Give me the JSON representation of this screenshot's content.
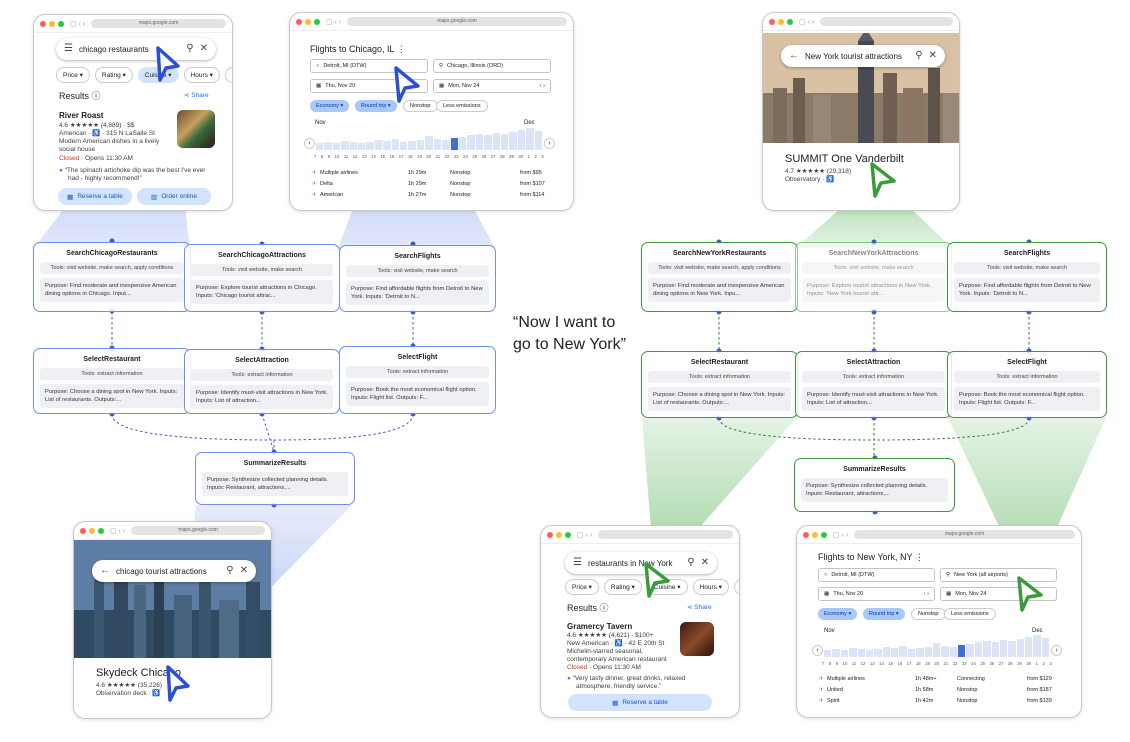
{
  "colors": {
    "blue_accent": "#5b7fe8",
    "green_accent": "#3a9b3a",
    "chip_selected": "#d3e3fd",
    "closed_red": "#d93025"
  },
  "quote": {
    "line1": "“Now I want to",
    "line2": "go to New York”"
  },
  "maps_chicago": {
    "url": "maps.google.com",
    "search": "chicago restaurants",
    "chips": [
      "Price",
      "Rating",
      "Cuisine",
      "Hours"
    ],
    "results_label": "Results",
    "share_label": "Share",
    "name": "River Roast",
    "rating_line": "4.6 ★★★★★ (4,889) · $$",
    "category_line": "American · ♿ · 315 N LaSalle St",
    "desc1": "Modern American dishes in a lively",
    "desc2": "social house",
    "status": "Closed",
    "opens": "· Opens 11:30 AM",
    "review1": "“The spinach artichoke dip was the best I've ever",
    "review2": "had - highly recommend!”",
    "reserve_button": "Reserve a table",
    "order_button": "Order online"
  },
  "flights_chicago": {
    "url": "maps.google.com",
    "title": "Flights to Chicago, IL",
    "from": "Detroit, MI (DTW)",
    "to": "Chicago, Illinois (ORD)",
    "depart": "Thu, Nov 20",
    "return": "Mon, Nov 24",
    "chips": [
      "Economy",
      "Round trip",
      "Nonstop",
      "Less emissions"
    ],
    "month_left": "Nov",
    "month_right": "Dec",
    "dates": [
      "7",
      "8",
      "9",
      "10",
      "11",
      "12",
      "13",
      "14",
      "15",
      "16",
      "17",
      "18",
      "19",
      "20",
      "21",
      "22",
      "23",
      "24",
      "25",
      "26",
      "27",
      "28",
      "29",
      "30",
      "1",
      "2",
      "3"
    ],
    "airlines": [
      {
        "name": "Multiple airlines",
        "duration": "1h 29m",
        "stops": "Nonstop",
        "price": "from $95"
      },
      {
        "name": "Delta",
        "duration": "1h 29m",
        "stops": "Nonstop",
        "price": "from $107"
      },
      {
        "name": "American",
        "duration": "1h 27m",
        "stops": "Nonstop",
        "price": "from $114"
      }
    ]
  },
  "attraction_ny": {
    "search": "New York tourist attractions",
    "place": "SUMMIT One Vanderbilt",
    "rating_line": "4.7 ★★★★★ (29,318)",
    "category": "Observatory · ♿"
  },
  "attraction_chicago": {
    "url": "maps.google.com",
    "search": "chicago tourist attractions",
    "place": "Skydeck Chicago",
    "rating_line": "4.6 ★★★★★ (35,226)",
    "category": "Observation deck · ♿"
  },
  "maps_ny": {
    "search": "restaurants in New York",
    "chips": [
      "Price",
      "Rating",
      "Cuisine",
      "Hours"
    ],
    "results_label": "Results",
    "share_label": "Share",
    "name": "Gramercy Tavern",
    "rating_line": "4.6 ★★★★★ (4,621) · $100+",
    "category_line": "New American · ♿ · 42 E 20th St",
    "desc1": "Michelin-starred seasonal,",
    "desc2": "contemporary American restaurant",
    "status": "Closed",
    "opens": "· Opens 11:30 AM",
    "review1": "“Very tasty dinner, great drinks, relaxed",
    "review2": "atmosphere, friendly service.”",
    "reserve_button": "Reserve a table"
  },
  "flights_ny": {
    "url": "maps.google.com",
    "title": "Flights to New York, NY",
    "from": "Detroit, MI (DTW)",
    "to": "New York (all airports)",
    "depart": "Thu, Nov 20",
    "return": "Mon, Nov 24",
    "chips": [
      "Economy",
      "Round trip",
      "Nonstop",
      "Less emissions"
    ],
    "month_left": "Nov",
    "month_right": "Dec",
    "dates": [
      "7",
      "8",
      "9",
      "10",
      "11",
      "12",
      "13",
      "14",
      "15",
      "16",
      "17",
      "18",
      "19",
      "20",
      "21",
      "22",
      "23",
      "24",
      "25",
      "26",
      "27",
      "28",
      "29",
      "30",
      "1",
      "2",
      "3"
    ],
    "airlines": [
      {
        "name": "Multiple airlines",
        "duration": "1h 48m+",
        "stops": "Connecting",
        "price": "from $129"
      },
      {
        "name": "United",
        "duration": "1h 58m",
        "stops": "Nonstop",
        "price": "from $187"
      },
      {
        "name": "Spirit",
        "duration": "1h 42m",
        "stops": "Nonstop",
        "price": "from $139"
      }
    ]
  },
  "left_nodes": {
    "search_restaurants": {
      "title": "SearchChicagoRestaurants",
      "tools": "Tools: visit website, make search, apply conditions",
      "purpose": "Purpose: Find moderate and inexpensive American dining options in Chicago. Input..."
    },
    "search_attractions": {
      "title": "SearchChicagoAttractions",
      "tools": "Tools: visit website, make search",
      "purpose": "Purpose: Explore tourist attractions in Chicago. Inputs: 'Chicago tourist attrac..."
    },
    "search_flights": {
      "title": "SearchFlights",
      "tools": "Tools: visit website, make search",
      "purpose": "Purpose: Find affordable flights from Detroit to New York. Inputs: 'Detroit to N..."
    },
    "select_restaurant": {
      "title": "SelectRestaurant",
      "tools": "Tools: extract information",
      "purpose": "Purpose: Choose a dining spot in New York. Inputs: List of restaurants. Outputs:..."
    },
    "select_attraction": {
      "title": "SelectAttraction",
      "tools": "Tools: extract information",
      "purpose": "Purpose: Identify must-visit attractions in New York. Inputs: List of attraction..."
    },
    "select_flight": {
      "title": "SelectFlight",
      "tools": "Tools: extract information",
      "purpose": "Purpose: Book the most economical flight option. Inputs: Flight list. Outputs: F..."
    },
    "summarize": {
      "title": "SummarizeResults",
      "purpose": "Purpose: Synthesize collected planning details. Inputs: Restaurant, attractions,..."
    }
  },
  "right_nodes": {
    "search_restaurants": {
      "title": "SearchNewYorkRestaurants",
      "tools": "Tools: visit website, make search, apply conditions",
      "purpose": "Purpose: Find moderate and inexpensive American dining options in New York. Inpu..."
    },
    "search_attractions": {
      "title": "SearchNewYorkAttractions",
      "tools": "Tools: visit website, make search",
      "purpose": "Purpose: Explore tourist attractions in New York. Inputs: 'New York tourist attr..."
    },
    "search_flights": {
      "title": "SearchFlights",
      "tools": "Tools: visit website, make search",
      "purpose": "Purpose: Find affordable flights from Detroit to New York. Inputs: 'Detroit to N..."
    },
    "select_restaurant": {
      "title": "SelectRestaurant",
      "tools": "Tools: extract information",
      "purpose": "Purpose: Choose a dining spot in New York. Inputs: List of restaurants. Outputs:..."
    },
    "select_attraction": {
      "title": "SelectAttraction",
      "tools": "Tools: extract information",
      "purpose": "Purpose: Identify must-visit attractions in New York. Inputs: List of attraction..."
    },
    "select_flight": {
      "title": "SelectFlight",
      "tools": "Tools: extract information",
      "purpose": "Purpose: Book the most economical flight option. Inputs: Flight list. Outputs: F..."
    },
    "summarize": {
      "title": "SummarizeResults",
      "purpose": "Purpose: Synthesize collected planning details. Inputs: Restaurant, attractions,..."
    }
  }
}
